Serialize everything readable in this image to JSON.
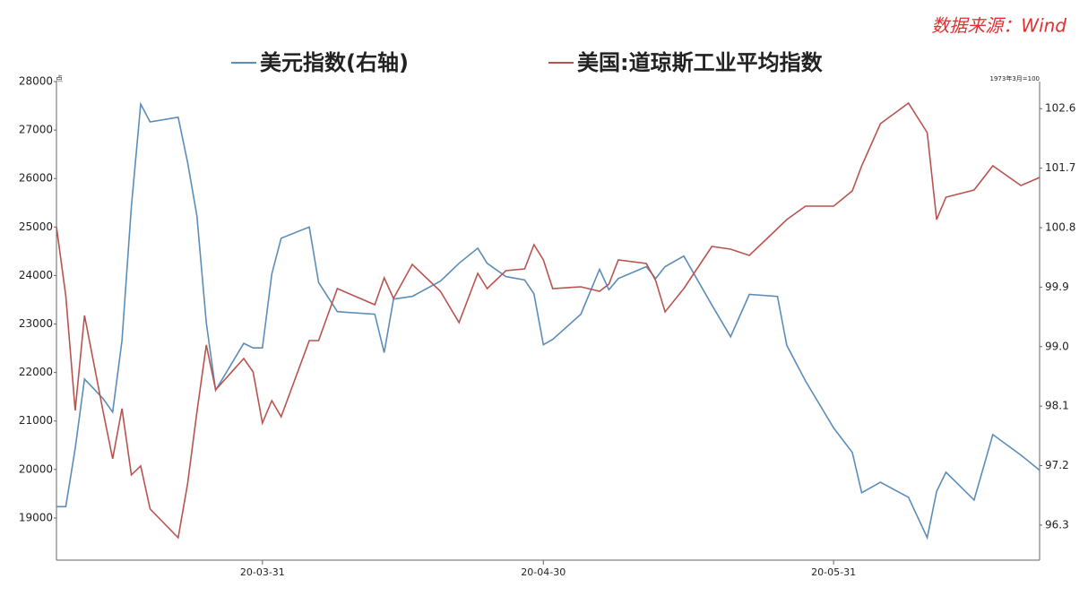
{
  "chart_data": {
    "type": "line",
    "source": "数据来源：Wind",
    "y_unit": "点",
    "y2_unit": "1973年3月=100",
    "x": [
      -22,
      -21,
      -20,
      -19,
      -17,
      -16,
      -15,
      -14,
      -13,
      -12,
      -9,
      -8,
      -7,
      -6,
      -5,
      -2,
      -1,
      0,
      1,
      2,
      5,
      6,
      8,
      12,
      13,
      14,
      16,
      19,
      21,
      23,
      24,
      26,
      28,
      29,
      30,
      31,
      34,
      36,
      37,
      38,
      41,
      42,
      43,
      45,
      48,
      50,
      52,
      55,
      56,
      58,
      61,
      63,
      64,
      66,
      69,
      71,
      72,
      73,
      76,
      78,
      81,
      83
    ],
    "xlim": [
      -22,
      83
    ],
    "xticks": [
      {
        "value": 0,
        "label": "20-03-31"
      },
      {
        "value": 30,
        "label": "20-04-30"
      },
      {
        "value": 61,
        "label": "20-05-31"
      }
    ],
    "ylim": [
      18130,
      28000
    ],
    "yticks": [
      19000,
      20000,
      21000,
      22000,
      23000,
      24000,
      25000,
      26000,
      27000,
      28000
    ],
    "y2lim": [
      95.77,
      103.01
    ],
    "y2ticks": [
      96.3,
      97.2,
      98.1,
      {
        "value": 99,
        "label": "99.0"
      },
      99.9,
      100.8,
      101.7,
      102.6
    ],
    "legend": "top",
    "series": [
      {
        "name": "美元指数(右轴)",
        "color": "#5b8db8",
        "axis": "y2",
        "values": [
          96.58,
          96.58,
          97.46,
          98.51,
          98.21,
          98.01,
          99.09,
          101.12,
          102.67,
          102.4,
          102.47,
          101.79,
          100.98,
          99.36,
          98.34,
          99.05,
          98.98,
          98.98,
          100.1,
          100.64,
          100.81,
          99.97,
          99.53,
          99.49,
          98.91,
          99.72,
          99.76,
          99.99,
          100.26,
          100.49,
          100.26,
          100.06,
          100.01,
          99.8,
          99.03,
          99.11,
          99.49,
          100.17,
          99.86,
          100.03,
          100.21,
          100.03,
          100.21,
          100.37,
          99.63,
          99.15,
          99.79,
          99.76,
          99.02,
          98.48,
          97.77,
          97.4,
          96.79,
          96.95,
          96.72,
          96.11,
          96.81,
          97.1,
          96.68,
          97.67,
          97.36,
          97.13
        ]
      },
      {
        "name": "美国:道琼斯工业平均指数",
        "color": "#b85450",
        "values": [
          25006,
          23583,
          21218,
          23177,
          21181,
          20220,
          21255,
          19887,
          20072,
          19185,
          18593,
          19702,
          21181,
          22567,
          21643,
          22289,
          22012,
          20958,
          21420,
          21088,
          22659,
          22659,
          23731,
          23398,
          23953,
          23528,
          24230,
          23675,
          23029,
          24045,
          23731,
          24100,
          24137,
          24636,
          24322,
          23731,
          23768,
          23675,
          23823,
          24322,
          24248,
          23897,
          23250,
          23731,
          24599,
          24544,
          24415,
          24969,
          25154,
          25431,
          25431,
          25745,
          26262,
          27131,
          27556,
          26946,
          25154,
          25616,
          25764,
          26262,
          25856,
          26022
        ]
      }
    ]
  }
}
